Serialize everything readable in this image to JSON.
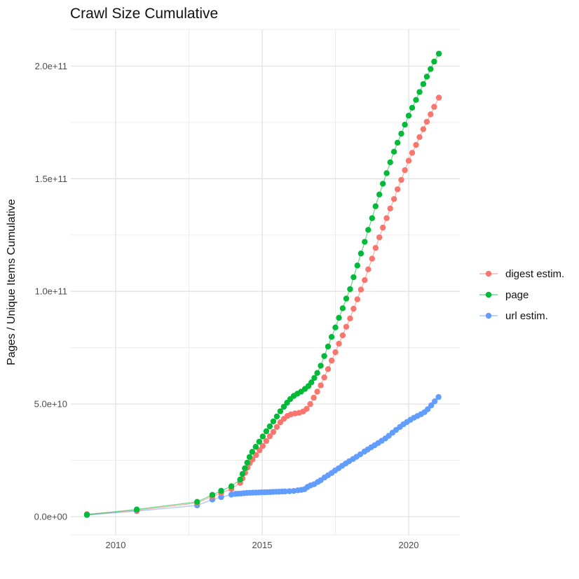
{
  "title": "Crawl Size Cumulative",
  "y_axis_label": "Pages / Unique Items Cumulative",
  "legend": {
    "position": "right",
    "items": [
      {
        "label": "digest estim.",
        "color": "#F8766D"
      },
      {
        "label": "page",
        "color": "#00BA38"
      },
      {
        "label": "url estim.",
        "color": "#619CFF"
      }
    ]
  },
  "chart_data": {
    "type": "scatter",
    "title": "Crawl Size Cumulative",
    "xlabel": "",
    "ylabel": "Pages / Unique Items Cumulative",
    "x_unit": "year",
    "value_unit": "pages, stored in billions (1e9); e.g. 205 = 2.05e+11",
    "xlim": [
      2008.47,
      2021.75
    ],
    "ylim_billions": [
      -8.1,
      216.3
    ],
    "grid": true,
    "legend_position": "right",
    "x_ticks": [
      {
        "value": 2010,
        "label": "2010"
      },
      {
        "value": 2015,
        "label": "2015"
      },
      {
        "value": 2020,
        "label": "2020"
      }
    ],
    "y_ticks": [
      {
        "value": 0,
        "label": "0.0e+00"
      },
      {
        "value": 50,
        "label": "5.0e+10"
      },
      {
        "value": 100,
        "label": "1.0e+11"
      },
      {
        "value": 150,
        "label": "1.5e+11"
      },
      {
        "value": 200,
        "label": "2.0e+11"
      }
    ],
    "x_minor": [
      2012.5,
      2017.5
    ],
    "y_minor": [
      25,
      75,
      125,
      175
    ],
    "draw_order": [
      2,
      0,
      1
    ],
    "series": [
      {
        "name": "digest estim.",
        "color": "#F8766D",
        "points": [
          [
            2009.02,
            1.1
          ],
          [
            2010.72,
            2.8
          ],
          [
            2012.78,
            6.1
          ],
          [
            2013.3,
            9.0
          ],
          [
            2013.6,
            10.5
          ],
          [
            2013.95,
            12.3
          ],
          [
            2014.25,
            15.0
          ],
          [
            2014.33,
            17.0
          ],
          [
            2014.42,
            19.5
          ],
          [
            2014.5,
            21.8
          ],
          [
            2014.58,
            23.8
          ],
          [
            2014.67,
            25.4
          ],
          [
            2014.79,
            27.3
          ],
          [
            2014.91,
            29.5
          ],
          [
            2015.02,
            31.4
          ],
          [
            2015.14,
            33.6
          ],
          [
            2015.26,
            35.7
          ],
          [
            2015.38,
            37.6
          ],
          [
            2015.5,
            39.8
          ],
          [
            2015.62,
            41.9
          ],
          [
            2015.74,
            43.4
          ],
          [
            2015.86,
            44.7
          ],
          [
            2015.98,
            45.4
          ],
          [
            2016.12,
            45.8
          ],
          [
            2016.26,
            46.1
          ],
          [
            2016.4,
            46.7
          ],
          [
            2016.52,
            47.9
          ],
          [
            2016.64,
            50.0
          ],
          [
            2016.76,
            52.8
          ],
          [
            2016.88,
            55.5
          ],
          [
            2017.0,
            58.3
          ],
          [
            2017.12,
            61.8
          ],
          [
            2017.25,
            65.5
          ],
          [
            2017.37,
            69.3
          ],
          [
            2017.5,
            73.0
          ],
          [
            2017.62,
            76.8
          ],
          [
            2017.75,
            80.5
          ],
          [
            2017.87,
            84.3
          ],
          [
            2018.0,
            88.0
          ],
          [
            2018.12,
            92.3
          ],
          [
            2018.25,
            96.5
          ],
          [
            2018.37,
            100.8
          ],
          [
            2018.5,
            105.0
          ],
          [
            2018.62,
            109.8
          ],
          [
            2018.75,
            114.5
          ],
          [
            2018.87,
            119.3
          ],
          [
            2019.0,
            124.0
          ],
          [
            2019.12,
            128.3
          ],
          [
            2019.25,
            132.5
          ],
          [
            2019.37,
            136.8
          ],
          [
            2019.5,
            141.0
          ],
          [
            2019.62,
            145.3
          ],
          [
            2019.75,
            149.5
          ],
          [
            2019.87,
            153.8
          ],
          [
            2020.0,
            158.0
          ],
          [
            2020.12,
            161.5
          ],
          [
            2020.25,
            165.0
          ],
          [
            2020.37,
            168.5
          ],
          [
            2020.5,
            172.0
          ],
          [
            2020.62,
            175.3
          ],
          [
            2020.75,
            178.6
          ],
          [
            2020.87,
            181.9
          ],
          [
            2021.03,
            186.0
          ]
        ]
      },
      {
        "name": "page",
        "color": "#00BA38",
        "points": [
          [
            2009.02,
            0.9
          ],
          [
            2010.72,
            3.2
          ],
          [
            2012.78,
            6.6
          ],
          [
            2013.3,
            9.7
          ],
          [
            2013.6,
            11.5
          ],
          [
            2013.95,
            13.5
          ],
          [
            2014.25,
            16.5
          ],
          [
            2014.33,
            19.0
          ],
          [
            2014.41,
            21.5
          ],
          [
            2014.49,
            24.0
          ],
          [
            2014.57,
            26.5
          ],
          [
            2014.66,
            28.8
          ],
          [
            2014.78,
            31.0
          ],
          [
            2014.9,
            33.3
          ],
          [
            2015.02,
            35.6
          ],
          [
            2015.14,
            37.9
          ],
          [
            2015.26,
            40.1
          ],
          [
            2015.38,
            42.3
          ],
          [
            2015.5,
            44.5
          ],
          [
            2015.62,
            46.8
          ],
          [
            2015.74,
            48.8
          ],
          [
            2015.85,
            50.6
          ],
          [
            2015.96,
            52.2
          ],
          [
            2016.08,
            53.6
          ],
          [
            2016.2,
            54.6
          ],
          [
            2016.33,
            55.5
          ],
          [
            2016.46,
            56.7
          ],
          [
            2016.58,
            58.0
          ],
          [
            2016.68,
            59.6
          ],
          [
            2016.78,
            61.6
          ],
          [
            2016.88,
            63.8
          ],
          [
            2017.0,
            67.0
          ],
          [
            2017.12,
            71.3
          ],
          [
            2017.25,
            75.5
          ],
          [
            2017.37,
            79.8
          ],
          [
            2017.5,
            84.0
          ],
          [
            2017.62,
            88.3
          ],
          [
            2017.75,
            92.5
          ],
          [
            2017.87,
            96.8
          ],
          [
            2018.0,
            101.0
          ],
          [
            2018.12,
            106.3
          ],
          [
            2018.25,
            111.5
          ],
          [
            2018.37,
            116.8
          ],
          [
            2018.5,
            122.0
          ],
          [
            2018.62,
            127.3
          ],
          [
            2018.75,
            132.5
          ],
          [
            2018.87,
            137.8
          ],
          [
            2019.0,
            143.0
          ],
          [
            2019.12,
            147.8
          ],
          [
            2019.25,
            152.5
          ],
          [
            2019.37,
            157.3
          ],
          [
            2019.5,
            162.0
          ],
          [
            2019.62,
            166.0
          ],
          [
            2019.75,
            170.0
          ],
          [
            2019.87,
            174.0
          ],
          [
            2020.0,
            178.0
          ],
          [
            2020.12,
            181.5
          ],
          [
            2020.25,
            185.0
          ],
          [
            2020.37,
            188.5
          ],
          [
            2020.5,
            192.0
          ],
          [
            2020.62,
            195.3
          ],
          [
            2020.75,
            198.7
          ],
          [
            2020.87,
            202.0
          ],
          [
            2021.03,
            205.5
          ]
        ]
      },
      {
        "name": "url estim.",
        "color": "#619CFF",
        "points": [
          [
            2009.02,
            0.7
          ],
          [
            2010.72,
            2.5
          ],
          [
            2012.78,
            5.0
          ],
          [
            2013.3,
            7.6
          ],
          [
            2013.6,
            8.7
          ],
          [
            2013.95,
            9.8
          ],
          [
            2014.08,
            10.1
          ],
          [
            2014.18,
            10.2
          ],
          [
            2014.28,
            10.3
          ],
          [
            2014.38,
            10.45
          ],
          [
            2014.48,
            10.55
          ],
          [
            2014.58,
            10.6
          ],
          [
            2014.68,
            10.65
          ],
          [
            2014.78,
            10.7
          ],
          [
            2014.88,
            10.75
          ],
          [
            2014.98,
            10.8
          ],
          [
            2015.08,
            10.85
          ],
          [
            2015.18,
            10.9
          ],
          [
            2015.28,
            10.95
          ],
          [
            2015.38,
            11.0
          ],
          [
            2015.48,
            11.05
          ],
          [
            2015.58,
            11.1
          ],
          [
            2015.68,
            11.15
          ],
          [
            2015.78,
            11.2
          ],
          [
            2015.93,
            11.3
          ],
          [
            2016.08,
            11.45
          ],
          [
            2016.22,
            11.7
          ],
          [
            2016.34,
            11.9
          ],
          [
            2016.45,
            12.2
          ],
          [
            2016.55,
            13.2
          ],
          [
            2016.65,
            13.9
          ],
          [
            2016.77,
            14.4
          ],
          [
            2016.9,
            15.4
          ],
          [
            2017.0,
            16.2
          ],
          [
            2017.13,
            17.4
          ],
          [
            2017.25,
            18.4
          ],
          [
            2017.37,
            19.4
          ],
          [
            2017.49,
            20.5
          ],
          [
            2017.61,
            21.5
          ],
          [
            2017.73,
            22.6
          ],
          [
            2017.85,
            23.6
          ],
          [
            2017.97,
            24.6
          ],
          [
            2018.1,
            25.6
          ],
          [
            2018.22,
            26.6
          ],
          [
            2018.35,
            27.7
          ],
          [
            2018.49,
            28.9
          ],
          [
            2018.6,
            29.8
          ],
          [
            2018.72,
            30.8
          ],
          [
            2018.84,
            31.7
          ],
          [
            2018.96,
            32.7
          ],
          [
            2019.08,
            33.7
          ],
          [
            2019.2,
            34.7
          ],
          [
            2019.32,
            35.9
          ],
          [
            2019.45,
            37.3
          ],
          [
            2019.57,
            38.5
          ],
          [
            2019.7,
            39.8
          ],
          [
            2019.82,
            41.0
          ],
          [
            2019.94,
            42.0
          ],
          [
            2020.06,
            43.0
          ],
          [
            2020.18,
            43.9
          ],
          [
            2020.3,
            44.7
          ],
          [
            2020.42,
            45.5
          ],
          [
            2020.54,
            46.4
          ],
          [
            2020.65,
            47.7
          ],
          [
            2020.77,
            49.4
          ],
          [
            2020.89,
            51.2
          ],
          [
            2021.02,
            53.1
          ]
        ]
      }
    ]
  }
}
